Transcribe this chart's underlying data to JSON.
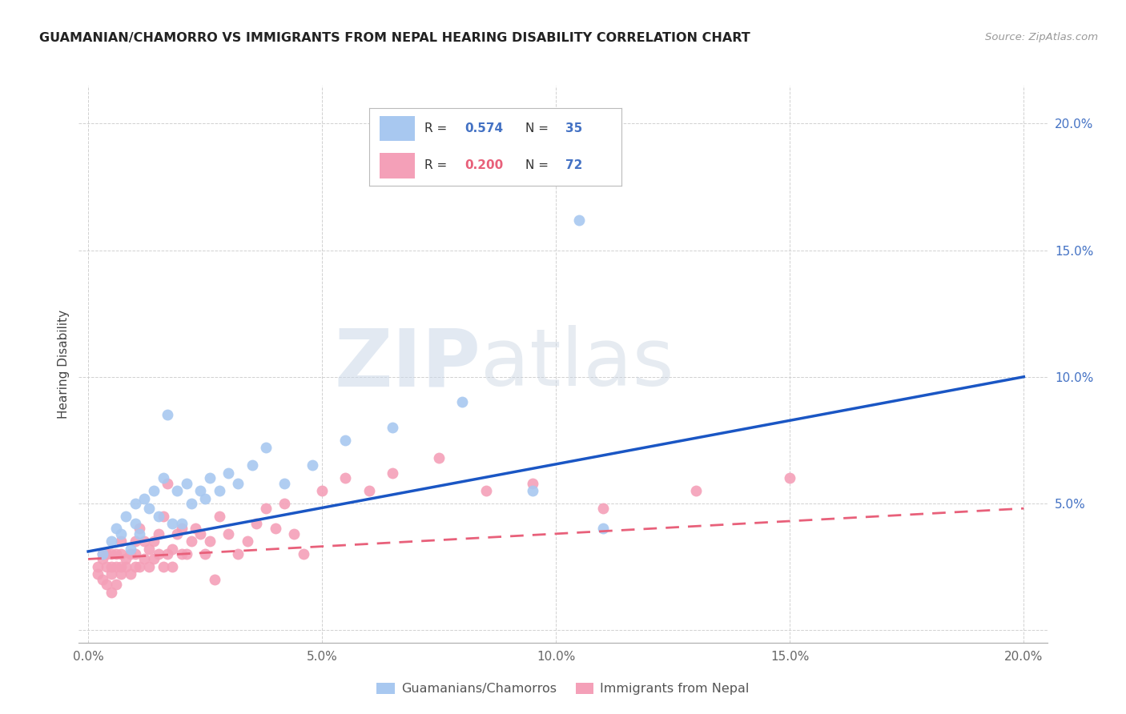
{
  "title": "GUAMANIAN/CHAMORRO VS IMMIGRANTS FROM NEPAL HEARING DISABILITY CORRELATION CHART",
  "source": "Source: ZipAtlas.com",
  "ylabel": "Hearing Disability",
  "ytick_values": [
    0.0,
    0.05,
    0.1,
    0.15,
    0.2
  ],
  "xtick_values": [
    0.0,
    0.05,
    0.1,
    0.15,
    0.2
  ],
  "xlim": [
    -0.002,
    0.205
  ],
  "ylim": [
    -0.005,
    0.215
  ],
  "blue_R": 0.574,
  "blue_N": 35,
  "pink_R": 0.2,
  "pink_N": 72,
  "blue_color": "#A8C8F0",
  "pink_color": "#F4A0B8",
  "blue_line_color": "#1A56C4",
  "pink_line_color": "#E8607A",
  "watermark_zip": "ZIP",
  "watermark_atlas": "atlas",
  "legend_label_blue": "Guamanians/Chamorros",
  "legend_label_pink": "Immigrants from Nepal",
  "blue_line_x0": 0.0,
  "blue_line_y0": 0.031,
  "blue_line_x1": 0.2,
  "blue_line_y1": 0.1,
  "pink_line_x0": 0.0,
  "pink_line_y0": 0.028,
  "pink_line_x1": 0.2,
  "pink_line_y1": 0.048,
  "blue_scatter_x": [
    0.003,
    0.005,
    0.006,
    0.007,
    0.008,
    0.009,
    0.01,
    0.01,
    0.011,
    0.012,
    0.013,
    0.014,
    0.015,
    0.016,
    0.017,
    0.018,
    0.019,
    0.02,
    0.021,
    0.022,
    0.024,
    0.025,
    0.026,
    0.028,
    0.03,
    0.032,
    0.035,
    0.038,
    0.042,
    0.048,
    0.055,
    0.065,
    0.08,
    0.095,
    0.11
  ],
  "blue_scatter_y": [
    0.03,
    0.035,
    0.04,
    0.038,
    0.045,
    0.032,
    0.042,
    0.05,
    0.038,
    0.052,
    0.048,
    0.055,
    0.045,
    0.06,
    0.085,
    0.042,
    0.055,
    0.042,
    0.058,
    0.05,
    0.055,
    0.052,
    0.06,
    0.055,
    0.062,
    0.058,
    0.065,
    0.072,
    0.058,
    0.065,
    0.075,
    0.08,
    0.09,
    0.055,
    0.04
  ],
  "blue_outlier_x": [
    0.105
  ],
  "blue_outlier_y": [
    0.162
  ],
  "pink_scatter_x": [
    0.002,
    0.002,
    0.003,
    0.003,
    0.003,
    0.004,
    0.004,
    0.004,
    0.005,
    0.005,
    0.005,
    0.005,
    0.006,
    0.006,
    0.006,
    0.007,
    0.007,
    0.007,
    0.007,
    0.008,
    0.008,
    0.009,
    0.009,
    0.01,
    0.01,
    0.01,
    0.011,
    0.011,
    0.012,
    0.012,
    0.013,
    0.013,
    0.014,
    0.014,
    0.015,
    0.015,
    0.016,
    0.016,
    0.017,
    0.017,
    0.018,
    0.018,
    0.019,
    0.02,
    0.02,
    0.021,
    0.022,
    0.023,
    0.024,
    0.025,
    0.026,
    0.027,
    0.028,
    0.03,
    0.032,
    0.034,
    0.036,
    0.038,
    0.04,
    0.042,
    0.044,
    0.046,
    0.05,
    0.055,
    0.06,
    0.065,
    0.075,
    0.085,
    0.095,
    0.11,
    0.13,
    0.15
  ],
  "pink_scatter_y": [
    0.025,
    0.022,
    0.028,
    0.03,
    0.02,
    0.025,
    0.03,
    0.018,
    0.025,
    0.022,
    0.03,
    0.015,
    0.025,
    0.03,
    0.018,
    0.025,
    0.03,
    0.022,
    0.035,
    0.025,
    0.028,
    0.022,
    0.03,
    0.025,
    0.03,
    0.035,
    0.025,
    0.04,
    0.028,
    0.035,
    0.025,
    0.032,
    0.028,
    0.035,
    0.03,
    0.038,
    0.025,
    0.045,
    0.03,
    0.058,
    0.025,
    0.032,
    0.038,
    0.03,
    0.04,
    0.03,
    0.035,
    0.04,
    0.038,
    0.03,
    0.035,
    0.02,
    0.045,
    0.038,
    0.03,
    0.035,
    0.042,
    0.048,
    0.04,
    0.05,
    0.038,
    0.03,
    0.055,
    0.06,
    0.055,
    0.062,
    0.068,
    0.055,
    0.058,
    0.048,
    0.055,
    0.06
  ]
}
